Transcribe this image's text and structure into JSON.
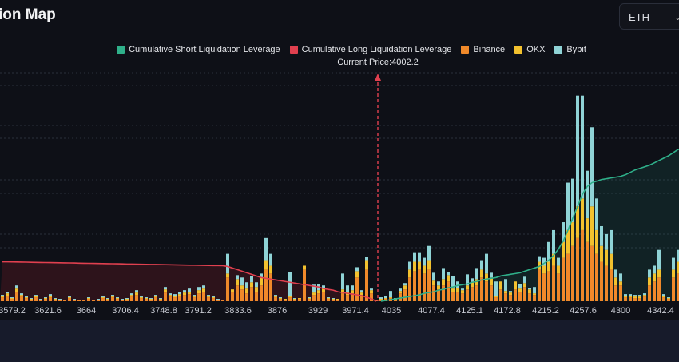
{
  "header": {
    "title": "ion Map",
    "symbol_select": "ETH",
    "symbol_icon": "chevron-down-icon"
  },
  "chart_data": {
    "type": "bar",
    "stacked": true,
    "legend": [
      {
        "name": "Cumulative Short Liquidation Leverage",
        "color": "#2fb08a"
      },
      {
        "name": "Cumulative Long Liquidation Leverage",
        "color": "#e0404f"
      },
      {
        "name": "Binance",
        "color": "#f0892a"
      },
      {
        "name": "OKX",
        "color": "#f2c12e"
      },
      {
        "name": "Bybit",
        "color": "#8fd3d6"
      }
    ],
    "legend_position": "top-center",
    "current_price_label": "Current Price:4002.2",
    "current_price": 4002.2,
    "x_tick_labels": [
      "3579.2",
      "3621.6",
      "3664",
      "3706.4",
      "3748.8",
      "3791.2",
      "3833.6",
      "3876",
      "3929",
      "3971.4",
      "4035",
      "4077.4",
      "4125.1",
      "4172.8",
      "4215.2",
      "4257.6",
      "4300",
      "4342.4"
    ],
    "grid": true,
    "ylim": [
      0,
      290
    ],
    "bars": [
      [
        5,
        2,
        1
      ],
      [
        7,
        3,
        2
      ],
      [
        3,
        1,
        1
      ],
      [
        12,
        4,
        4
      ],
      [
        6,
        2,
        2
      ],
      [
        4,
        1,
        1
      ],
      [
        2,
        1,
        1
      ],
      [
        5,
        2,
        1
      ],
      [
        2,
        0,
        1
      ],
      [
        3,
        1,
        1
      ],
      [
        5,
        2,
        2
      ],
      [
        2,
        1,
        1
      ],
      [
        2,
        0,
        1
      ],
      [
        1,
        0,
        1
      ],
      [
        4,
        1,
        1
      ],
      [
        2,
        0,
        1
      ],
      [
        1,
        0,
        1
      ],
      [
        1,
        0,
        0
      ],
      [
        3,
        1,
        1
      ],
      [
        1,
        0,
        1
      ],
      [
        2,
        0,
        1
      ],
      [
        4,
        1,
        1
      ],
      [
        2,
        1,
        1
      ],
      [
        5,
        1,
        2
      ],
      [
        3,
        1,
        1
      ],
      [
        2,
        0,
        1
      ],
      [
        2,
        1,
        1
      ],
      [
        6,
        2,
        2
      ],
      [
        8,
        3,
        3
      ],
      [
        4,
        1,
        1
      ],
      [
        3,
        1,
        1
      ],
      [
        2,
        1,
        1
      ],
      [
        5,
        1,
        2
      ],
      [
        2,
        1,
        1
      ],
      [
        11,
        4,
        3
      ],
      [
        6,
        2,
        2
      ],
      [
        5,
        2,
        2
      ],
      [
        7,
        2,
        3
      ],
      [
        8,
        3,
        3
      ],
      [
        9,
        3,
        4
      ],
      [
        5,
        1,
        2
      ],
      [
        10,
        4,
        4
      ],
      [
        12,
        4,
        4
      ],
      [
        5,
        1,
        2
      ],
      [
        4,
        1,
        1
      ],
      [
        2,
        0,
        1
      ],
      [
        1,
        0,
        1
      ],
      [
        30,
        5,
        25
      ],
      [
        12,
        3,
        0
      ],
      [
        20,
        8,
        5
      ],
      [
        15,
        5,
        10
      ],
      [
        10,
        6,
        8
      ],
      [
        18,
        6,
        8
      ],
      [
        12,
        6,
        6
      ],
      [
        20,
        10,
        5
      ],
      [
        40,
        12,
        28
      ],
      [
        35,
        10,
        15
      ],
      [
        5,
        1,
        2
      ],
      [
        3,
        1,
        1
      ],
      [
        2,
        1,
        0
      ],
      [
        5,
        2,
        30
      ],
      [
        2,
        1,
        1
      ],
      [
        3,
        1,
        0
      ],
      [
        40,
        5,
        0
      ],
      [
        3,
        1,
        1
      ],
      [
        8,
        3,
        10
      ],
      [
        10,
        4,
        8
      ],
      [
        12,
        4,
        4
      ],
      [
        3,
        1,
        1
      ],
      [
        2,
        1,
        1
      ],
      [
        2,
        1,
        0
      ],
      [
        10,
        5,
        20
      ],
      [
        8,
        4,
        8
      ],
      [
        10,
        4,
        6
      ],
      [
        30,
        8,
        5
      ],
      [
        8,
        3,
        3
      ],
      [
        40,
        12,
        4
      ],
      [
        10,
        4,
        2
      ],
      [
        1,
        0,
        0
      ],
      [
        2,
        1,
        2
      ],
      [
        3,
        1,
        3
      ],
      [
        4,
        1,
        8
      ],
      [
        2,
        1,
        1
      ],
      [
        10,
        3,
        3
      ],
      [
        15,
        5,
        3
      ],
      [
        30,
        10,
        10
      ],
      [
        38,
        12,
        12
      ],
      [
        40,
        10,
        12
      ],
      [
        35,
        10,
        10
      ],
      [
        40,
        12,
        18
      ],
      [
        20,
        6,
        10
      ],
      [
        15,
        5,
        5
      ],
      [
        20,
        8,
        14
      ],
      [
        25,
        8,
        4
      ],
      [
        12,
        4,
        16
      ],
      [
        12,
        5,
        8
      ],
      [
        10,
        4,
        2
      ],
      [
        15,
        5,
        14
      ],
      [
        18,
        6,
        5
      ],
      [
        20,
        8,
        14
      ],
      [
        30,
        10,
        12
      ],
      [
        25,
        10,
        25
      ],
      [
        20,
        10,
        6
      ],
      [
        5,
        2,
        18
      ],
      [
        15,
        10,
        0
      ],
      [
        10,
        3,
        15
      ],
      [
        8,
        3,
        2
      ],
      [
        15,
        10,
        0
      ],
      [
        12,
        4,
        6
      ],
      [
        18,
        5,
        8
      ],
      [
        10,
        5,
        2
      ],
      [
        8,
        2,
        8
      ],
      [
        40,
        10,
        7
      ],
      [
        35,
        10,
        10
      ],
      [
        38,
        12,
        25
      ],
      [
        45,
        15,
        30
      ],
      [
        35,
        10,
        10
      ],
      [
        55,
        20,
        25
      ],
      [
        60,
        30,
        60
      ],
      [
        70,
        30,
        55
      ],
      [
        80,
        40,
        140
      ],
      [
        90,
        40,
        130
      ],
      [
        75,
        30,
        60
      ],
      [
        70,
        50,
        100
      ],
      [
        60,
        30,
        40
      ],
      [
        50,
        20,
        25
      ],
      [
        45,
        20,
        20
      ],
      [
        40,
        20,
        30
      ],
      [
        20,
        10,
        10
      ],
      [
        20,
        5,
        10
      ],
      [
        5,
        2,
        2
      ],
      [
        5,
        2,
        2
      ],
      [
        4,
        2,
        2
      ],
      [
        4,
        2,
        2
      ],
      [
        6,
        2,
        2
      ],
      [
        20,
        10,
        10
      ],
      [
        25,
        10,
        10
      ],
      [
        30,
        10,
        25
      ],
      [
        5,
        2,
        2
      ],
      [
        3,
        1,
        1
      ],
      [
        30,
        10,
        15
      ],
      [
        35,
        15,
        15
      ]
    ],
    "cumulative_long": [
      50,
      49.9,
      49.8,
      49.7,
      49.6,
      49.5,
      49.3,
      49.2,
      49.1,
      49,
      48.9,
      48.8,
      48.7,
      48.6,
      48.5,
      48.4,
      48.2,
      48.1,
      48,
      47.9,
      47.8,
      47.7,
      47.6,
      47.5,
      47.4,
      47.3,
      47.1,
      47,
      46.9,
      46.8,
      46.7,
      46.6,
      46.5,
      46.4,
      46.3,
      46.2,
      46,
      45.9,
      45.8,
      45.7,
      45.6,
      45.5,
      45.4,
      45.3,
      45.2,
      45.1,
      45,
      44,
      42,
      40,
      38,
      36,
      34,
      32,
      30,
      29,
      28,
      27,
      26,
      25,
      24,
      23,
      22,
      21,
      20,
      19,
      18,
      16,
      15,
      14,
      12,
      11,
      10,
      9,
      8,
      7,
      5,
      3,
      0
    ],
    "cumulative_short": [
      0,
      1,
      2,
      3,
      4,
      5,
      6,
      7,
      8,
      10,
      11,
      12,
      14,
      15,
      17,
      18,
      20,
      21,
      22,
      24,
      25,
      27,
      28,
      29,
      30,
      32,
      33,
      34,
      35,
      36,
      38,
      40,
      42,
      44,
      48,
      52,
      58,
      66,
      76,
      90,
      105,
      120,
      135,
      145,
      150,
      152,
      154,
      155,
      156,
      157,
      158,
      160,
      163,
      166,
      168,
      170,
      172,
      175,
      178,
      181,
      184,
      188,
      192
    ]
  }
}
